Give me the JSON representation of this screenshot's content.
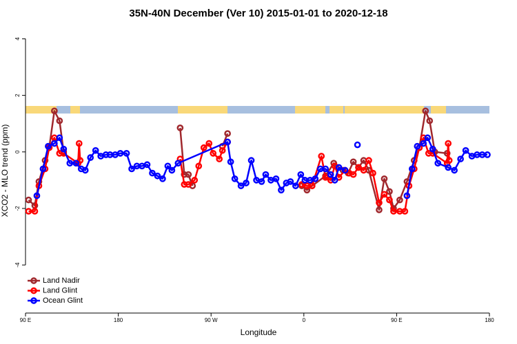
{
  "chart_data": {
    "type": "line",
    "title": "35N-40N December (Ver 10)   2015-01-01 to 2020-12-18",
    "xlabel": "Longitude",
    "ylabel": "XCO2 - MLO trend (ppm)",
    "xlim": [
      90,
      540
    ],
    "ylim": [
      -5.7,
      4.4
    ],
    "xticks": [
      {
        "value": 90,
        "label": "90 E"
      },
      {
        "value": 180,
        "label": "180"
      },
      {
        "value": 270,
        "label": "90 W"
      },
      {
        "value": 360,
        "label": "0"
      },
      {
        "value": 450,
        "label": "90 E"
      },
      {
        "value": 540,
        "label": "180"
      }
    ],
    "yticks": [
      -4,
      -2,
      0,
      2,
      4
    ],
    "legend": "bottom-left",
    "series": [
      {
        "name": "Land Nadir",
        "color": "#a0282d",
        "x": [
          93,
          99,
          103,
          109,
          113,
          118,
          123,
          127,
          null,
          240,
          244,
          248,
          252,
          null,
          281,
          286,
          null,
          358,
          363,
          368,
          381,
          389,
          398,
          403,
          408,
          413,
          418,
          423,
          433,
          438,
          443,
          447,
          453,
          460,
          467,
          472,
          478,
          482,
          487,
          499
        ],
        "values": [
          -1.7,
          -1.9,
          -1.05,
          -0.3,
          0.15,
          1.45,
          1.1,
          0.0,
          null,
          0.85,
          -0.8,
          -0.8,
          -1.2,
          null,
          0.2,
          0.65,
          null,
          -1.2,
          -1.35,
          -1.2,
          -0.85,
          -0.4,
          -0.65,
          -0.75,
          -0.35,
          -0.55,
          -0.3,
          -0.65,
          -2.05,
          -0.95,
          -1.4,
          -2.0,
          -1.7,
          -1.05,
          -0.3,
          0.15,
          1.45,
          1.1,
          0.0,
          -0.05
        ]
      },
      {
        "name": "Land Glint",
        "color": "#ff0000",
        "x": [
          93,
          99,
          103,
          109,
          113,
          118,
          123,
          127,
          141,
          142,
          143,
          null,
          240,
          244,
          248,
          254,
          258,
          263,
          268,
          272,
          278,
          281,
          286,
          null,
          358,
          363,
          368,
          377,
          381,
          386,
          390,
          394,
          400,
          404,
          408,
          413,
          418,
          423,
          427,
          433,
          438,
          443,
          447,
          453,
          458,
          462,
          467,
          472,
          476,
          481,
          485,
          499,
          500,
          501
        ],
        "values": [
          -2.1,
          -2.1,
          -1.2,
          -0.6,
          0.15,
          0.5,
          -0.05,
          -0.05,
          -0.4,
          0.3,
          -0.3,
          null,
          -0.25,
          -1.15,
          -1.15,
          -1.0,
          -0.5,
          0.15,
          0.3,
          -0.05,
          -0.25,
          0.05,
          0.35,
          null,
          -1.15,
          -1.2,
          -1.2,
          -0.15,
          -0.9,
          -1.0,
          -0.5,
          -0.9,
          -0.65,
          -0.75,
          -0.8,
          -0.55,
          -0.65,
          -0.3,
          -0.75,
          -1.8,
          -1.5,
          -1.7,
          -2.1,
          -2.1,
          -2.1,
          -1.2,
          -0.6,
          0.15,
          0.5,
          -0.05,
          -0.05,
          -0.4,
          0.3,
          -0.3
        ]
      },
      {
        "name": "Ocean Glint",
        "color": "#0000ff",
        "x": [
          101,
          107,
          112,
          118,
          123,
          127,
          133,
          139,
          144,
          148,
          153,
          158,
          163,
          168,
          172,
          177,
          182,
          188,
          193,
          198,
          203,
          208,
          213,
          218,
          223,
          228,
          232,
          238,
          286,
          289,
          293,
          299,
          304,
          309,
          314,
          319,
          323,
          328,
          333,
          338,
          343,
          347,
          352,
          357,
          361,
          366,
          371,
          376,
          381,
          386,
          390,
          394,
          400,
          null,
          412,
          null,
          460,
          465,
          470,
          476,
          480,
          485,
          490,
          500,
          506,
          512,
          517,
          523,
          528,
          533,
          538
        ],
        "values": [
          -1.55,
          -0.6,
          0.2,
          0.3,
          0.5,
          0.1,
          -0.4,
          -0.4,
          -0.6,
          -0.65,
          -0.2,
          0.05,
          -0.15,
          -0.1,
          -0.1,
          -0.1,
          -0.05,
          -0.05,
          -0.6,
          -0.5,
          -0.5,
          -0.45,
          -0.75,
          -0.85,
          -0.95,
          -0.5,
          -0.65,
          -0.4,
          0.35,
          -0.35,
          -0.95,
          -1.2,
          -1.1,
          -0.3,
          -1.0,
          -1.05,
          -0.8,
          -1.0,
          -0.95,
          -1.35,
          -1.1,
          -1.05,
          -1.2,
          -0.8,
          -1.0,
          -1.0,
          -0.95,
          -0.6,
          -0.6,
          -0.8,
          -1.0,
          -0.55,
          -0.65,
          null,
          0.25,
          null,
          -1.55,
          -0.6,
          0.2,
          0.3,
          0.5,
          0.1,
          -0.4,
          -0.55,
          -0.65,
          -0.25,
          0.05,
          -0.15,
          -0.1,
          -0.1,
          -0.1
        ]
      }
    ]
  }
}
